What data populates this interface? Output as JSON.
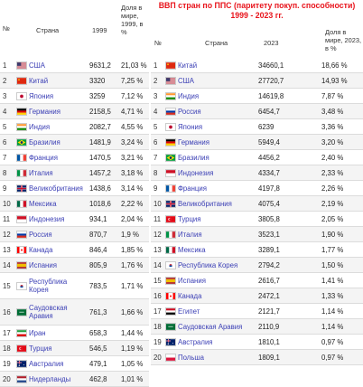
{
  "left": {
    "headers": {
      "num": "№",
      "country": "Страна",
      "year": "1999",
      "share": "Доля в мире, 1999, в %"
    },
    "rows": [
      {
        "num": "1",
        "name": "США",
        "value": "9631,2",
        "share": "21,03 %",
        "flag": "us"
      },
      {
        "num": "2",
        "name": "Китай",
        "value": "3320",
        "share": "7,25 %",
        "flag": "cn"
      },
      {
        "num": "3",
        "name": "Япония",
        "value": "3259",
        "share": "7,12 %",
        "flag": "jp"
      },
      {
        "num": "4",
        "name": "Германия",
        "value": "2158,5",
        "share": "4,71 %",
        "flag": "de"
      },
      {
        "num": "5",
        "name": "Индия",
        "value": "2082,7",
        "share": "4,55 %",
        "flag": "in"
      },
      {
        "num": "6",
        "name": "Бразилия",
        "value": "1481,9",
        "share": "3,24 %",
        "flag": "br"
      },
      {
        "num": "7",
        "name": "Франция",
        "value": "1470,5",
        "share": "3,21 %",
        "flag": "fr"
      },
      {
        "num": "8",
        "name": "Италия",
        "value": "1457,2",
        "share": "3,18 %",
        "flag": "it"
      },
      {
        "num": "9",
        "name": "Великобритания",
        "value": "1438,6",
        "share": "3,14 %",
        "flag": "gb"
      },
      {
        "num": "10",
        "name": "Мексика",
        "value": "1018,6",
        "share": "2,22 %",
        "flag": "mx"
      },
      {
        "num": "11",
        "name": "Индонезия",
        "value": "934,1",
        "share": "2,04 %",
        "flag": "id"
      },
      {
        "num": "12",
        "name": "Россия",
        "value": "870,7",
        "share": "1,9 %",
        "flag": "ru"
      },
      {
        "num": "13",
        "name": "Канада",
        "value": "846,4",
        "share": "1,85 %",
        "flag": "ca"
      },
      {
        "num": "14",
        "name": "Испания",
        "value": "805,9",
        "share": "1,76 %",
        "flag": "es"
      },
      {
        "num": "15",
        "name": "Республика Корея",
        "value": "783,5",
        "share": "1,71 %",
        "flag": "kr"
      },
      {
        "num": "16",
        "name": "Саудовская Аравия",
        "value": "761,3",
        "share": "1,66 %",
        "flag": "sa"
      },
      {
        "num": "17",
        "name": "Иран",
        "value": "658,3",
        "share": "1,44 %",
        "flag": "ir"
      },
      {
        "num": "18",
        "name": "Турция",
        "value": "546,5",
        "share": "1,19 %",
        "flag": "tr"
      },
      {
        "num": "19",
        "name": "Австралия",
        "value": "479,1",
        "share": "1,05 %",
        "flag": "au"
      },
      {
        "num": "20",
        "name": "Нидерланды",
        "value": "462,8",
        "share": "1,01 %",
        "flag": "nl"
      }
    ]
  },
  "right": {
    "title": "ВВП стран по ППС (паритету покуп. способности) 1999 - 2023 гг.",
    "headers": {
      "num": "№",
      "country": "Страна",
      "year": "2023",
      "share": "Доля в мире, 2023, в %"
    },
    "rows": [
      {
        "num": "1",
        "name": "Китай",
        "value": "34660,1",
        "share": "18,66 %",
        "flag": "cn"
      },
      {
        "num": "2",
        "name": "США",
        "value": "27720,7",
        "share": "14,93 %",
        "flag": "us"
      },
      {
        "num": "3",
        "name": "Индия",
        "value": "14619,8",
        "share": "7,87 %",
        "flag": "in"
      },
      {
        "num": "4",
        "name": "Россия",
        "value": "6454,7",
        "share": "3,48 %",
        "flag": "ru"
      },
      {
        "num": "5",
        "name": "Япония",
        "value": "6239",
        "share": "3,36 %",
        "flag": "jp"
      },
      {
        "num": "6",
        "name": "Германия",
        "value": "5949,4",
        "share": "3,20 %",
        "flag": "de"
      },
      {
        "num": "7",
        "name": "Бразилия",
        "value": "4456,2",
        "share": "2,40 %",
        "flag": "br"
      },
      {
        "num": "8",
        "name": "Индонезия",
        "value": "4334,7",
        "share": "2,33 %",
        "flag": "id"
      },
      {
        "num": "9",
        "name": "Франция",
        "value": "4197,8",
        "share": "2,26 %",
        "flag": "fr"
      },
      {
        "num": "10",
        "name": "Великобритания",
        "value": "4075,4",
        "share": "2,19 %",
        "flag": "gb"
      },
      {
        "num": "11",
        "name": "Турция",
        "value": "3805,8",
        "share": "2,05 %",
        "flag": "tr"
      },
      {
        "num": "12",
        "name": "Италия",
        "value": "3523,1",
        "share": "1,90 %",
        "flag": "it"
      },
      {
        "num": "13",
        "name": "Мексика",
        "value": "3289,1",
        "share": "1,77 %",
        "flag": "mx"
      },
      {
        "num": "14",
        "name": "Республика Корея",
        "value": "2794,2",
        "share": "1,50 %",
        "flag": "kr"
      },
      {
        "num": "15",
        "name": "Испания",
        "value": "2616,7",
        "share": "1,41 %",
        "flag": "es"
      },
      {
        "num": "16",
        "name": "Канада",
        "value": "2472,1",
        "share": "1,33 %",
        "flag": "ca"
      },
      {
        "num": "17",
        "name": "Египет",
        "value": "2121,7",
        "share": "1,14 %",
        "flag": "eg"
      },
      {
        "num": "18",
        "name": "Саудовская Аравия",
        "value": "2110,9",
        "share": "1,14 %",
        "flag": "sa"
      },
      {
        "num": "19",
        "name": "Австралия",
        "value": "1810,1",
        "share": "0,97 %",
        "flag": "au"
      },
      {
        "num": "20",
        "name": "Польша",
        "value": "1809,1",
        "share": "0,97 %",
        "flag": "pl"
      }
    ]
  },
  "flag_colors": {
    "us": [
      "#b22234",
      "#ffffff",
      "#3c3b6e"
    ],
    "cn": [
      "#de2910",
      "#ffde00"
    ],
    "jp": [
      "#ffffff",
      "#bc002d"
    ],
    "de": [
      "#000000",
      "#dd0000",
      "#ffce00"
    ],
    "in": [
      "#ff9933",
      "#ffffff",
      "#138808"
    ],
    "br": [
      "#009c3b",
      "#ffdf00",
      "#002776"
    ],
    "fr": [
      "#0055a4",
      "#ffffff",
      "#ef4135"
    ],
    "it": [
      "#009246",
      "#ffffff",
      "#ce2b37"
    ],
    "gb": [
      "#012169",
      "#ffffff",
      "#c8102e"
    ],
    "mx": [
      "#006847",
      "#ffffff",
      "#ce1126"
    ],
    "id": [
      "#ce1126",
      "#ffffff"
    ],
    "ru": [
      "#ffffff",
      "#0039a6",
      "#d52b1e"
    ],
    "ca": [
      "#ff0000",
      "#ffffff",
      "#ff0000"
    ],
    "es": [
      "#aa151b",
      "#f1bf00",
      "#aa151b"
    ],
    "kr": [
      "#ffffff",
      "#cd2e3a",
      "#0047a0"
    ],
    "sa": [
      "#006c35",
      "#ffffff"
    ],
    "ir": [
      "#239f40",
      "#ffffff",
      "#da0000"
    ],
    "tr": [
      "#e30a17",
      "#ffffff"
    ],
    "au": [
      "#012169",
      "#ffffff",
      "#e4002b"
    ],
    "nl": [
      "#ae1c28",
      "#ffffff",
      "#21468b"
    ],
    "eg": [
      "#ce1126",
      "#ffffff",
      "#000000"
    ],
    "pl": [
      "#ffffff",
      "#dc143c"
    ]
  },
  "title_color": "#e8141c",
  "link_color": "#3b3fb5"
}
